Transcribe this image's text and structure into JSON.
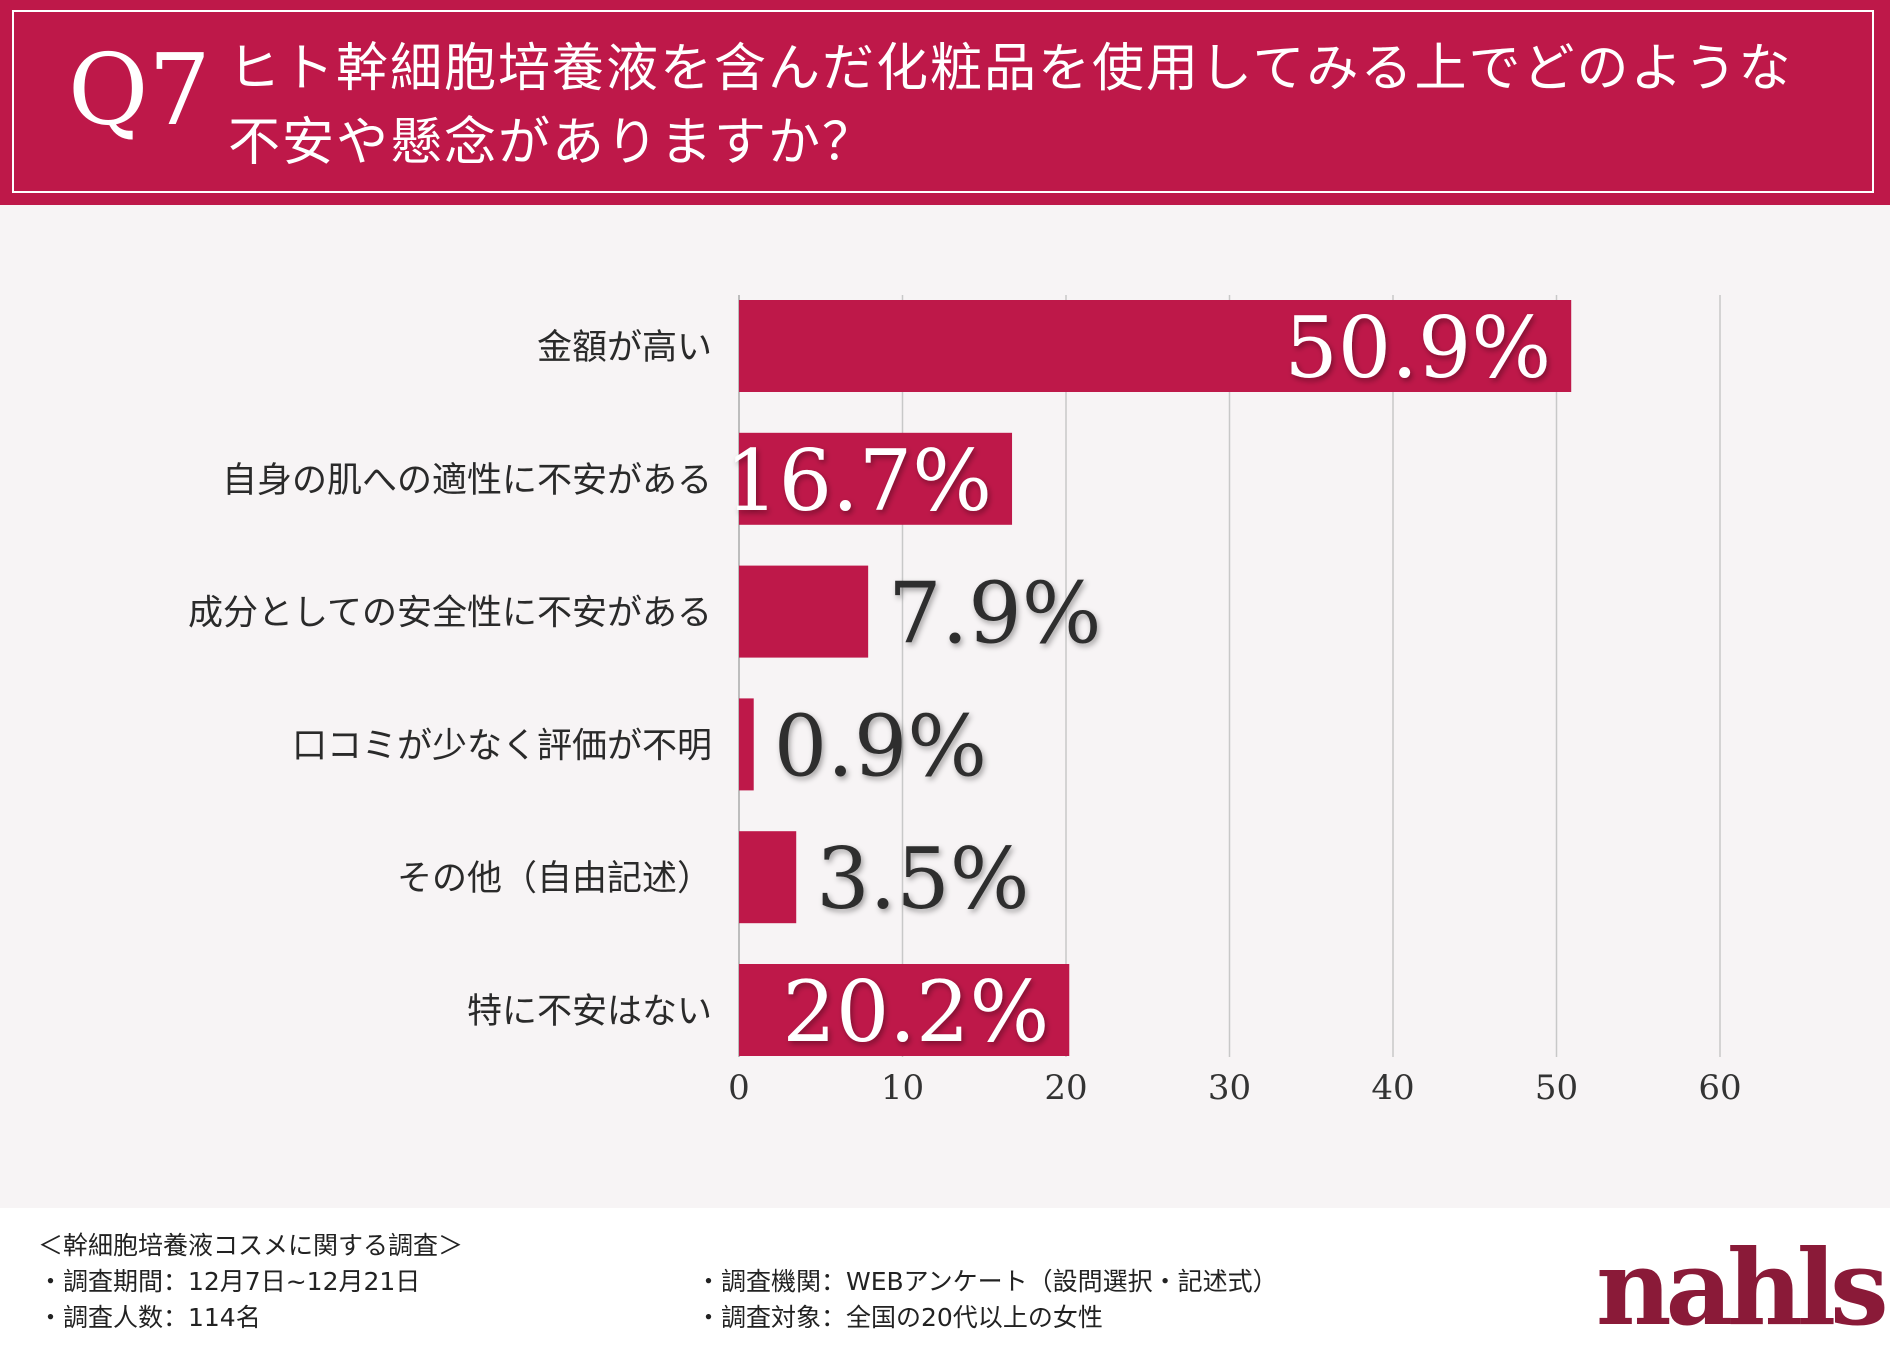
{
  "header": {
    "q_label": "Q7",
    "question_line1": "ヒト幹細胞培養液を含んだ化粧品を使用してみる上でどのような",
    "question_line2": "不安や懸念がありますか？"
  },
  "colors": {
    "accent": "#be1849",
    "bar": "#be1849",
    "background": "#f7f4f5",
    "grid": "#c8c8c8"
  },
  "chart_data": {
    "type": "bar",
    "orientation": "horizontal",
    "categories": [
      "金額が高い",
      "自身の肌への適性に不安がある",
      "成分としての安全性に不安がある",
      "口コミが少なく評価が不明",
      "その他（自由記述）",
      "特に不安はない"
    ],
    "values": [
      50.9,
      16.7,
      7.9,
      0.9,
      3.5,
      20.2
    ],
    "data_labels": [
      "50.9%",
      "16.7%",
      "7.9%",
      "0.9%",
      "3.5%",
      "20.2%"
    ],
    "x_ticks": [
      "0",
      "10",
      "20",
      "30",
      "40",
      "50",
      "60"
    ],
    "xlim": [
      0,
      60
    ],
    "grid": true,
    "title": "",
    "xlabel": "",
    "ylabel": ""
  },
  "footer": {
    "survey_title": "＜幹細胞培養液コスメに関する調査＞",
    "period": "・調査期間：12月7日~12月21日",
    "respondents": "・調査人数：114名",
    "agency": "・調査機関：WEBアンケート（設問選択・記述式）",
    "target": "・調査対象：全国の20代以上の女性",
    "logo": "nahls"
  }
}
